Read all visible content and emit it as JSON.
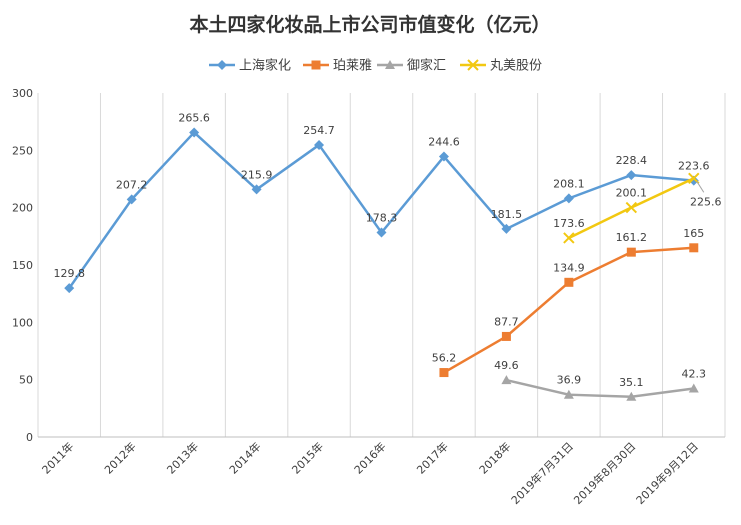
{
  "chart_data": {
    "type": "line",
    "title": "本土四家化妆品上市公司市值变化（亿元）",
    "categories": [
      "2011年",
      "2012年",
      "2013年",
      "2014年",
      "2015年",
      "2016年",
      "2017年",
      "2018年",
      "2019年7月31日",
      "2019年8月30日",
      "2019年9月12日"
    ],
    "ylim": [
      0,
      300
    ],
    "yticks": [
      0,
      50,
      100,
      150,
      200,
      250,
      300
    ],
    "grid": "vertical",
    "legend": "top",
    "series": [
      {
        "name": "上海家化",
        "color": "#5B9BD5",
        "marker": "diamond",
        "values": [
          129.8,
          207.2,
          265.6,
          215.9,
          254.7,
          178.3,
          244.6,
          181.5,
          208.1,
          228.4,
          223.6
        ],
        "labels": [
          "129.8",
          "207.2",
          "265.6",
          "215.9",
          "254.7",
          "178.3",
          "244.6",
          "181.5",
          "208.1",
          "228.4",
          "223.6"
        ]
      },
      {
        "name": "珀莱雅",
        "color": "#ED7D31",
        "marker": "square",
        "values": [
          null,
          null,
          null,
          null,
          null,
          null,
          56.2,
          87.7,
          134.9,
          161.2,
          165
        ],
        "labels": [
          null,
          null,
          null,
          null,
          null,
          null,
          "56.2",
          "87.7",
          "134.9",
          "161.2",
          "165"
        ]
      },
      {
        "name": "御家汇",
        "color": "#A5A5A5",
        "marker": "triangle",
        "values": [
          null,
          null,
          null,
          null,
          null,
          null,
          null,
          49.6,
          36.9,
          35.1,
          42.3
        ],
        "labels": [
          null,
          null,
          null,
          null,
          null,
          null,
          null,
          "49.6",
          "36.9",
          "35.1",
          "42.3"
        ]
      },
      {
        "name": "丸美股份",
        "color": "#F2C811",
        "marker": "x",
        "values": [
          null,
          null,
          null,
          null,
          null,
          null,
          null,
          null,
          173.6,
          200.1,
          225.6
        ],
        "labels": [
          null,
          null,
          null,
          null,
          null,
          null,
          null,
          null,
          "173.6",
          "200.1",
          "225.6"
        ]
      }
    ]
  }
}
